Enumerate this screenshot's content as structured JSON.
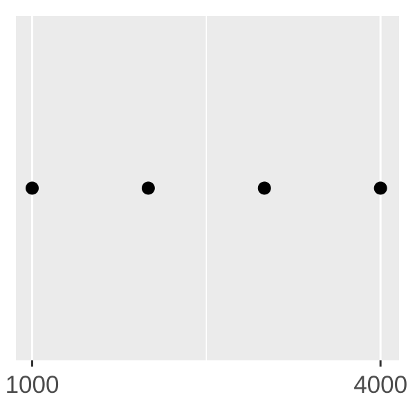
{
  "chart_data": {
    "type": "scatter",
    "title": "",
    "xlabel": "",
    "ylabel": "",
    "x": [
      1000,
      2000,
      3000,
      4000
    ],
    "y": [
      0,
      0,
      0,
      0
    ],
    "xlim": [
      860,
      4160
    ],
    "ylim": [
      -1,
      1
    ],
    "x_ticks": [
      1000,
      4000
    ],
    "x_tick_labels": [
      "1000",
      "4000"
    ],
    "x_minor_gridlines": [
      2500
    ],
    "grid": true,
    "panel_background": "#ebebeb",
    "gridline_color": "#ffffff",
    "point_color": "#000000"
  }
}
